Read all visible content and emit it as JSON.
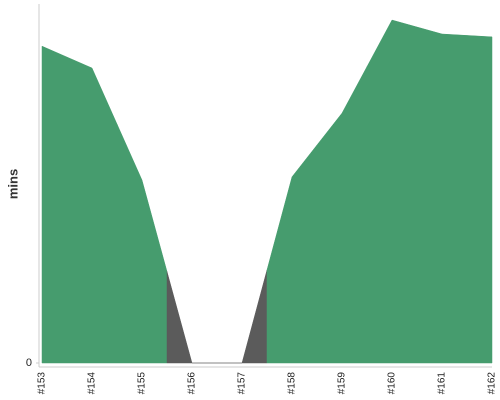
{
  "chart_data": {
    "type": "area",
    "y_label": "mins",
    "categories": [
      "#153",
      "#154",
      "#155",
      "#156",
      "#157",
      "#158",
      "#159",
      "#160",
      "#161",
      "#162"
    ],
    "series": [
      {
        "values": [
          88.5,
          82.4,
          51.1,
          0,
          0,
          52,
          69.8,
          95.8,
          91.9,
          91.1
        ],
        "colors": [
          "#469c6e",
          "#469c6e",
          "#469c6e",
          "#5b5b5b",
          "#5b5b5b",
          "#469c6e",
          "#469c6e",
          "#469c6e",
          "#469c6e",
          "#469c6e"
        ]
      }
    ],
    "ylim": [
      0,
      100
    ],
    "yticks": [
      0
    ]
  }
}
